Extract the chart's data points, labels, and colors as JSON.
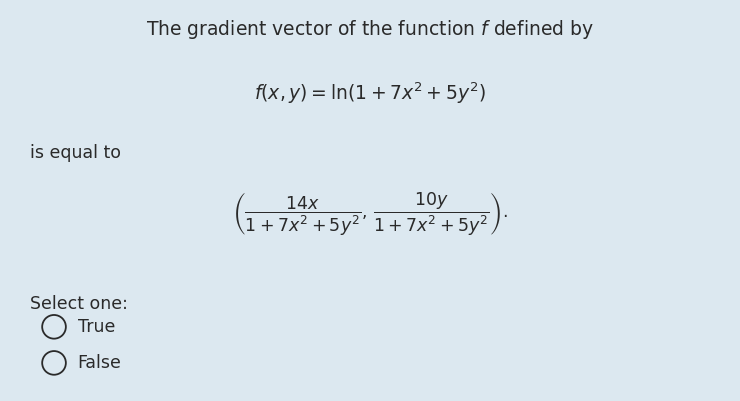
{
  "bg_color": "#dce8f0",
  "text_color": "#2a2a2a",
  "title_line1": "The gradient vector of the function $f$ defined by",
  "function_line": "$f(x,y) = \\ln(1+7x^2+5y^2)$",
  "equal_to_line": "is equal to",
  "gradient_expr": "$\\left(\\dfrac{14x}{1+7x^2+5y^2},\\,\\dfrac{10y}{1+7x^2+5y^2}\\right).$",
  "select_one": "Select one:",
  "option_true": "True",
  "option_false": "False",
  "font_size_title": 13.5,
  "font_size_body": 12.5,
  "font_size_math": 13.5,
  "font_size_gradient": 12.5,
  "font_size_select": 12.5
}
